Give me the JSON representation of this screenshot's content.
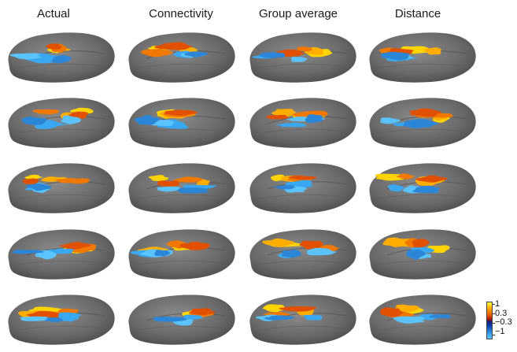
{
  "headers": [
    "Actual",
    "Connectivity",
    "Group average",
    "Distance"
  ],
  "rows": 5,
  "colorbar": {
    "labels": [
      "1",
      "0.3",
      "−0.3",
      "−1"
    ],
    "colors": {
      "positive_high": "#ffff4a",
      "positive_low": "#e85a00",
      "negative_low": "#0a3fb0",
      "negative_high": "#58c8ff",
      "brain": "#6e6e6e"
    }
  }
}
